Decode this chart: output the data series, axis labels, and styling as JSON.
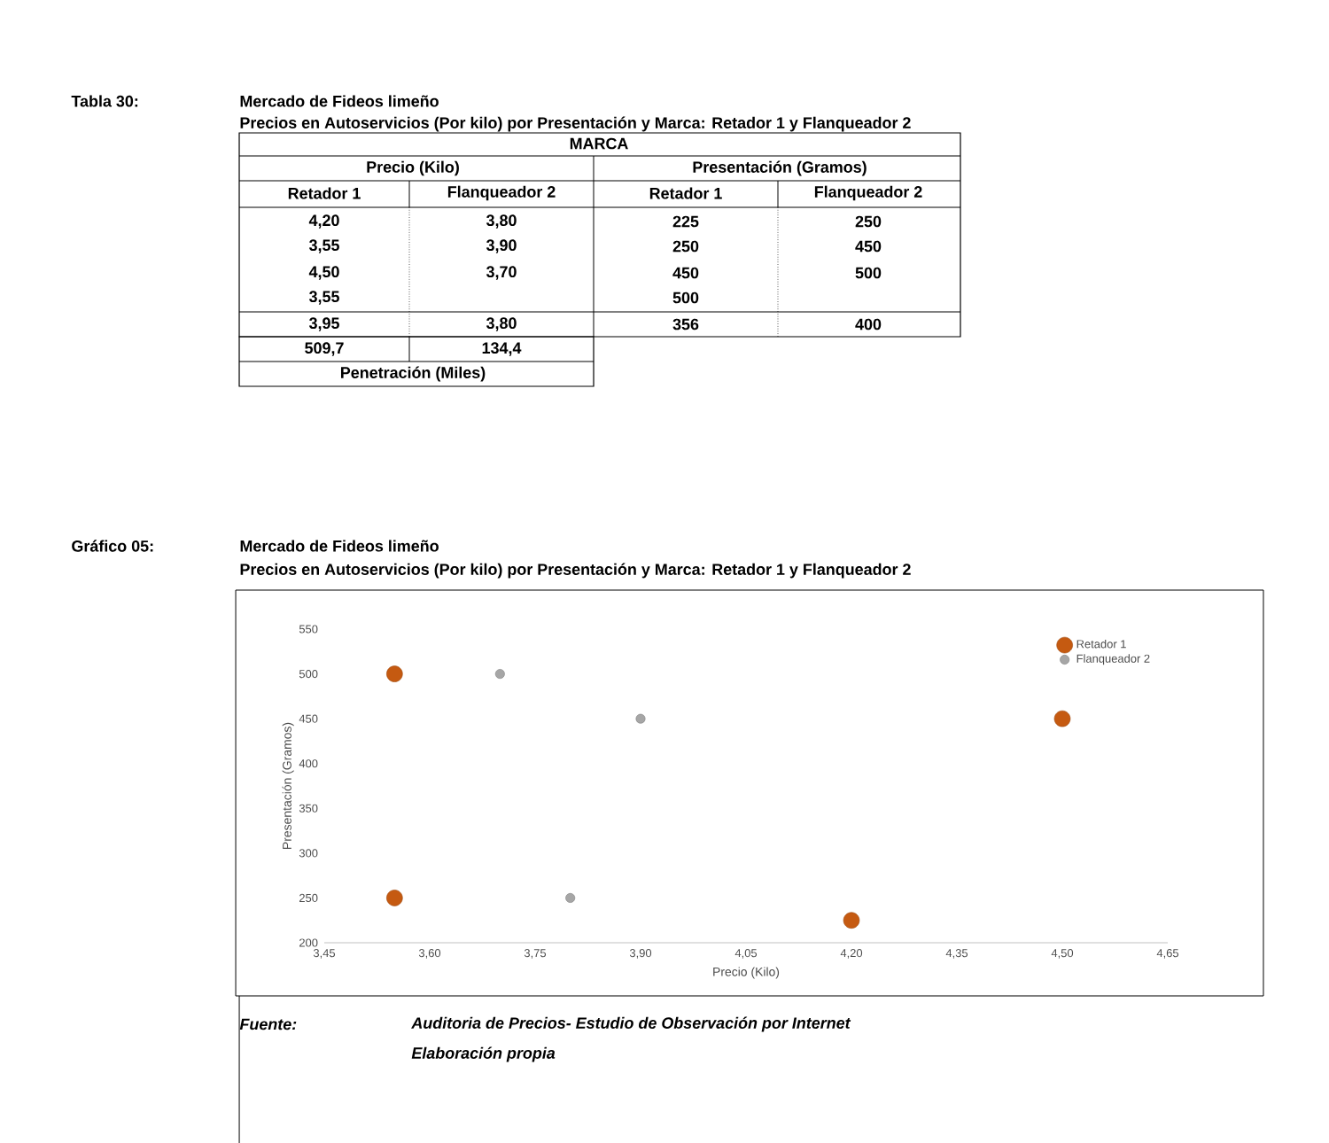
{
  "chart_data": [
    {
      "type": "other",
      "title": "Mercado de Fideos limeño",
      "subtitle": "Precios en Autoservicios (Por kilo) por Presentación y Marca: Retador 1 y Flanqueador 2",
      "annotations": [
        "Tabla 30:",
        "MARCA",
        "Precio (Kilo)",
        "Presentación (Gramos)",
        "Retador 1",
        "Flanqueador 2",
        "Retador 1",
        "Flanqueador 2",
        "4,20",
        "3,80",
        "225",
        "250",
        "3,55",
        "3,90",
        "250",
        "450",
        "4,50",
        "3,70",
        "450",
        "500",
        "3,55",
        "500",
        "3,95",
        "3,80",
        "356",
        "400",
        "509,7",
        "134,4",
        "Penetración (Miles)"
      ]
    },
    {
      "type": "scatter",
      "title": "Mercado de Fideos limeño",
      "subtitle": "Precios en Autoservicios (Por kilo) por Presentación y Marca: Retador 1 y Flanqueador 2",
      "xlabel": "Precio (Kilo)",
      "ylabel": "Presentación (Gramos)",
      "xlim": [
        3.45,
        4.65
      ],
      "ylim": [
        200,
        550
      ],
      "xticks": [
        {
          "value": 3.45,
          "label": "3,45"
        },
        {
          "value": 3.6,
          "label": "3,60"
        },
        {
          "value": 3.75,
          "label": "3,75"
        },
        {
          "value": 3.9,
          "label": "3,90"
        },
        {
          "value": 4.05,
          "label": "4,05"
        },
        {
          "value": 4.2,
          "label": "4,20"
        },
        {
          "value": 4.35,
          "label": "4,35"
        },
        {
          "value": 4.5,
          "label": "4,50"
        },
        {
          "value": 4.65,
          "label": "4,65"
        }
      ],
      "yticks": [
        200,
        250,
        300,
        350,
        400,
        450,
        500,
        550
      ],
      "legend": "top right",
      "series": [
        {
          "name": "Retador 1",
          "color": "#c55a11",
          "x": [
            4.2,
            3.55,
            4.5,
            3.55
          ],
          "values": [
            225,
            250,
            450,
            500
          ]
        },
        {
          "name": "Flanqueador 2",
          "color": "#a6a6a6",
          "x": [
            3.8,
            3.9,
            3.7
          ],
          "values": [
            250,
            450,
            500
          ]
        }
      ],
      "annotations": [
        "Gráfico 05:",
        "Fuente:",
        "Auditoria de Precios- Estudio de Observación por Internet",
        "Elaboración propia"
      ]
    }
  ]
}
